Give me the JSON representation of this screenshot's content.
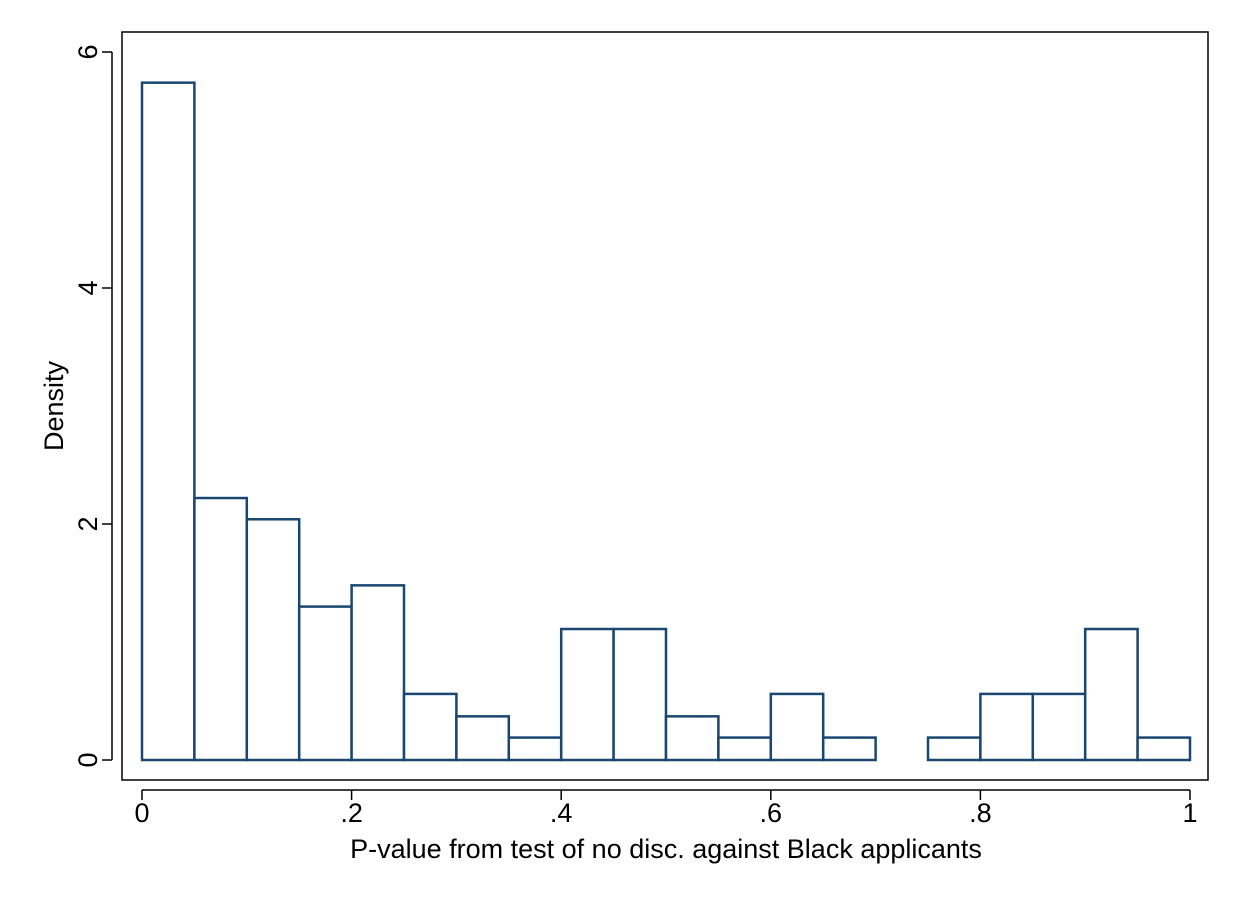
{
  "chart_data": {
    "type": "bar",
    "title": "",
    "xlabel": "P-value from test of no disc. against Black applicants",
    "ylabel": "Density",
    "xlim": [
      0,
      1
    ],
    "ylim": [
      0,
      6
    ],
    "grid": false,
    "legend": "none",
    "bin_width": 0.05,
    "x_ticks": [
      {
        "value": 0,
        "label": "0"
      },
      {
        "value": 0.2,
        "label": ".2"
      },
      {
        "value": 0.4,
        "label": ".4"
      },
      {
        "value": 0.6,
        "label": ".6"
      },
      {
        "value": 0.8,
        "label": ".8"
      },
      {
        "value": 1,
        "label": "1"
      }
    ],
    "y_ticks": [
      {
        "value": 0,
        "label": "0"
      },
      {
        "value": 2,
        "label": "2"
      },
      {
        "value": 4,
        "label": "4"
      },
      {
        "value": 6,
        "label": "6"
      }
    ],
    "bins": [
      {
        "start": 0.0,
        "end": 0.05,
        "density": 5.74
      },
      {
        "start": 0.05,
        "end": 0.1,
        "density": 2.22
      },
      {
        "start": 0.1,
        "end": 0.15,
        "density": 2.04
      },
      {
        "start": 0.15,
        "end": 0.2,
        "density": 1.3
      },
      {
        "start": 0.2,
        "end": 0.25,
        "density": 1.48
      },
      {
        "start": 0.25,
        "end": 0.3,
        "density": 0.56
      },
      {
        "start": 0.3,
        "end": 0.35,
        "density": 0.37
      },
      {
        "start": 0.35,
        "end": 0.4,
        "density": 0.19
      },
      {
        "start": 0.4,
        "end": 0.45,
        "density": 1.11
      },
      {
        "start": 0.45,
        "end": 0.5,
        "density": 1.11
      },
      {
        "start": 0.5,
        "end": 0.55,
        "density": 0.37
      },
      {
        "start": 0.55,
        "end": 0.6,
        "density": 0.19
      },
      {
        "start": 0.6,
        "end": 0.65,
        "density": 0.56
      },
      {
        "start": 0.65,
        "end": 0.7,
        "density": 0.19
      },
      {
        "start": 0.7,
        "end": 0.75,
        "density": 0.0
      },
      {
        "start": 0.75,
        "end": 0.8,
        "density": 0.19
      },
      {
        "start": 0.8,
        "end": 0.85,
        "density": 0.56
      },
      {
        "start": 0.85,
        "end": 0.9,
        "density": 0.56
      },
      {
        "start": 0.9,
        "end": 0.95,
        "density": 1.11
      },
      {
        "start": 0.95,
        "end": 1.0,
        "density": 0.19
      }
    ],
    "colors": {
      "bar_outline": "#1a476f",
      "bar_fill": "#ffffff",
      "axis": "#000000"
    }
  }
}
